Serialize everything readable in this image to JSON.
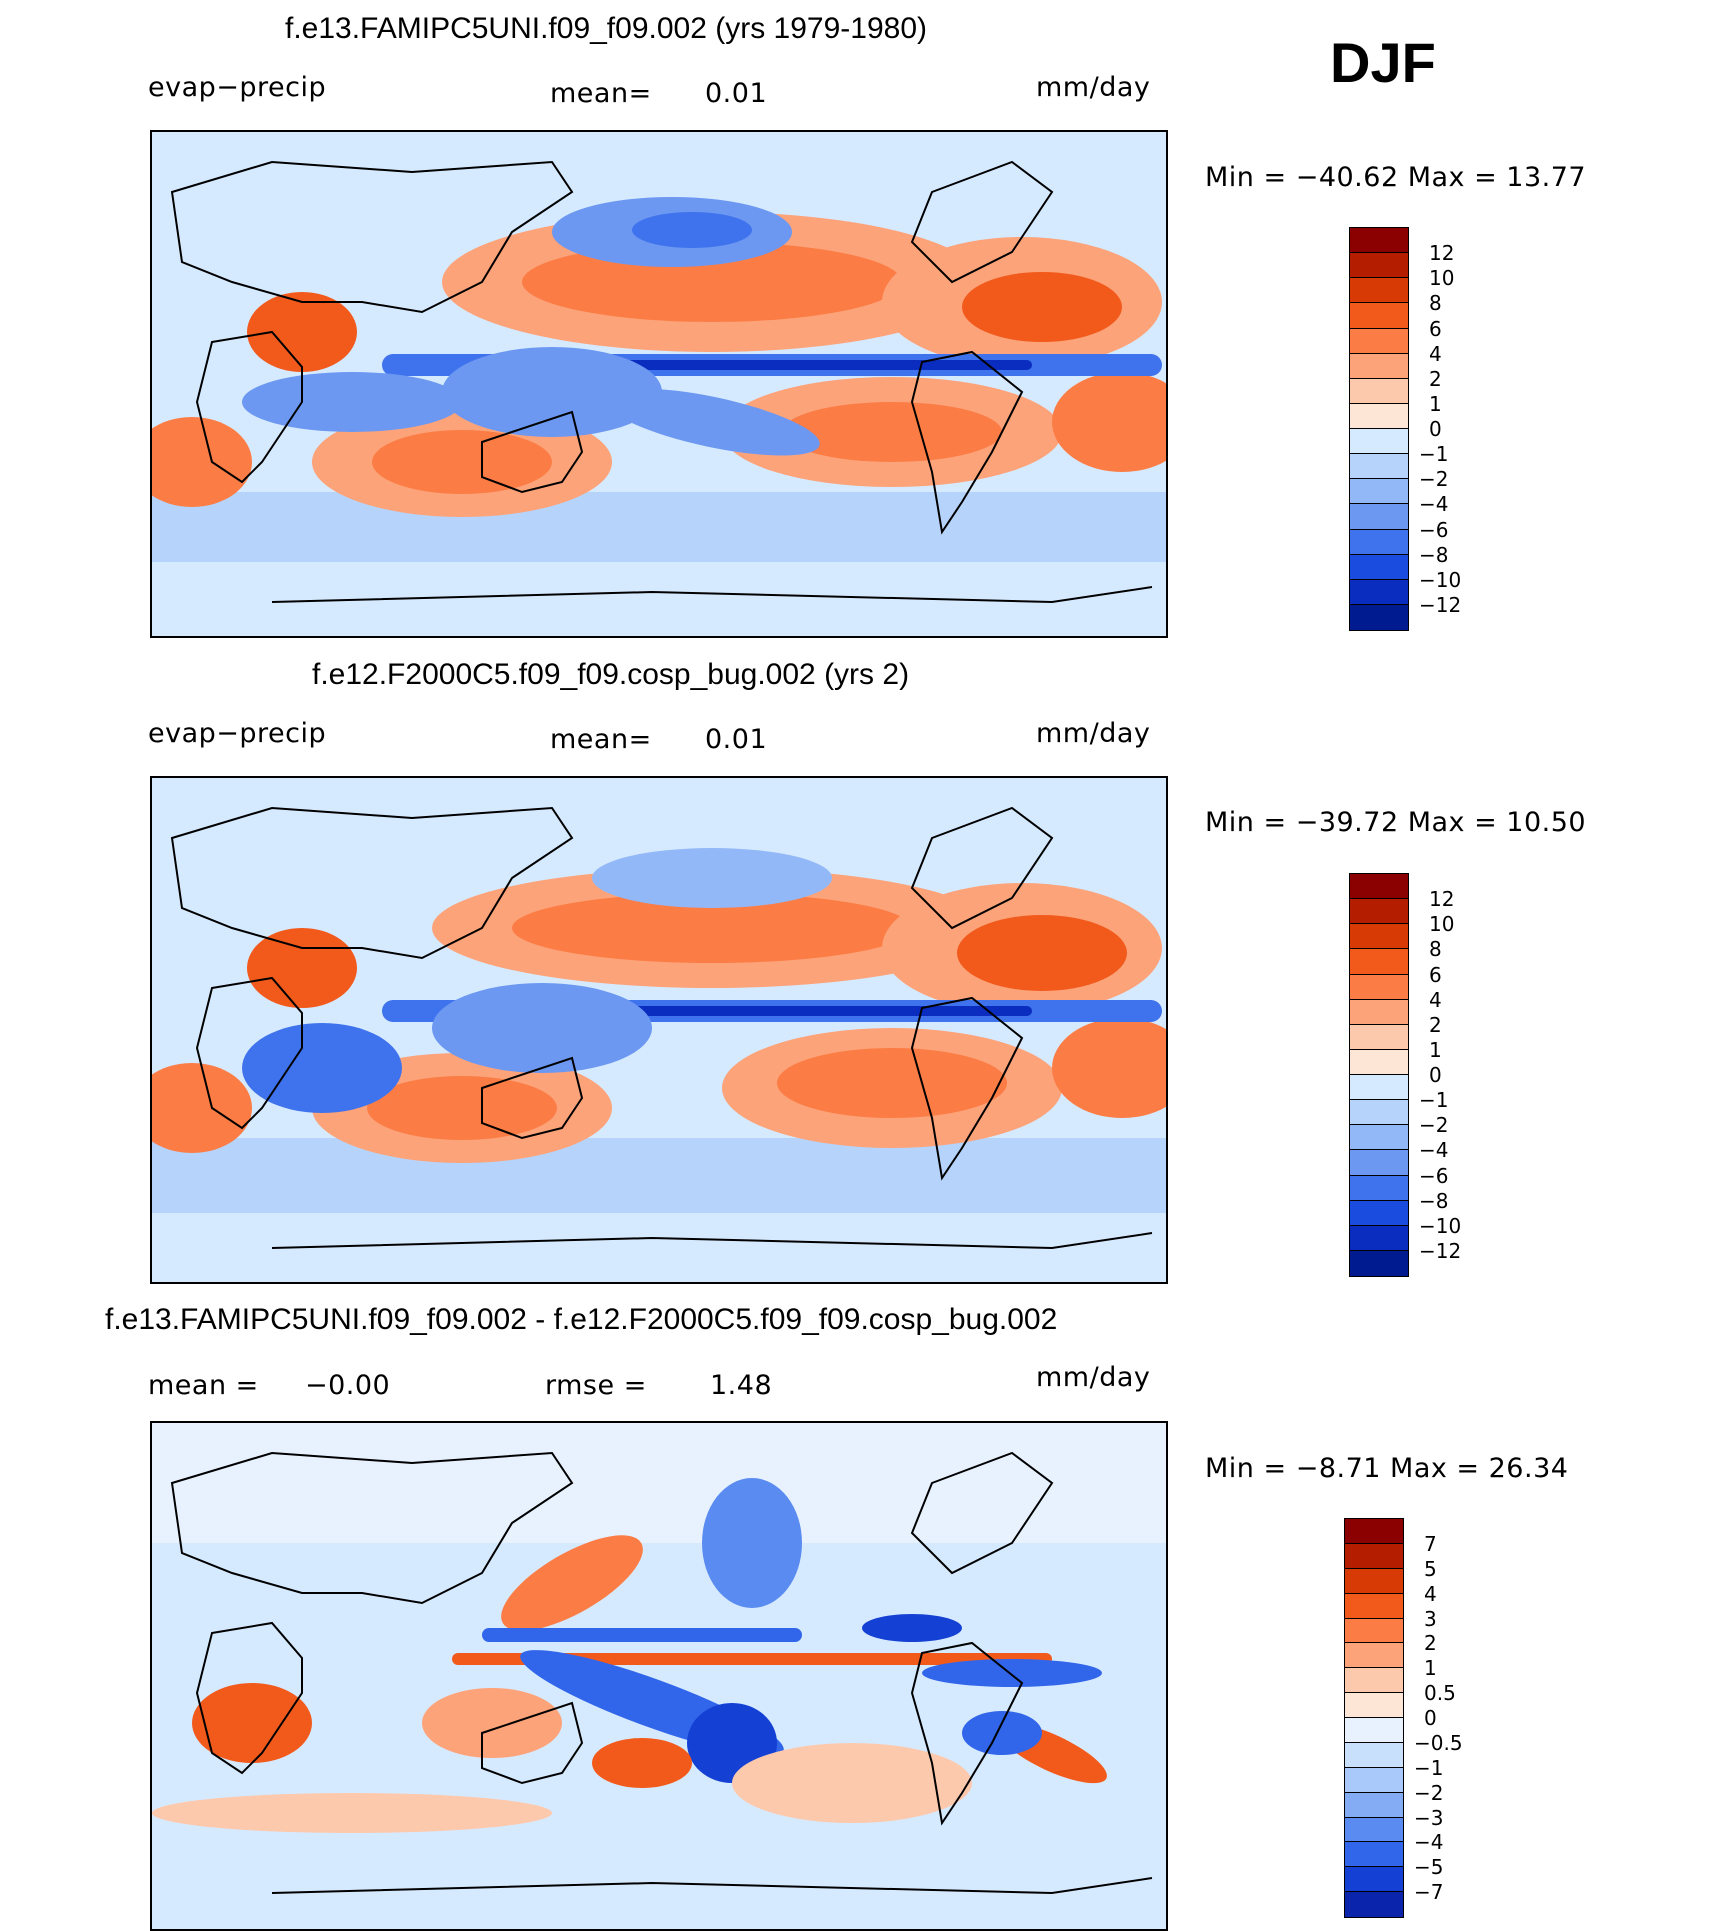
{
  "season": "DJF",
  "panels": [
    {
      "title": "f.e13.FAMIPC5UNI.f09_f09.002 (yrs 1979-1980)",
      "left_label": "evap−precip",
      "center_label": "mean=",
      "center_value": "0.01",
      "right_label": "mm/day",
      "minmax": "Min  =  −40.62  Max  =    13.77",
      "colorbar_labels": [
        "12",
        "10",
        "8",
        "6",
        "4",
        "2",
        "1",
        "0",
        "−1",
        "−2",
        "−4",
        "−6",
        "−8",
        "−10",
        "−12"
      ]
    },
    {
      "title": "f.e12.F2000C5.f09_f09.cosp_bug.002 (yrs 2)",
      "left_label": "evap−precip",
      "center_label": "mean=",
      "center_value": "0.01",
      "right_label": "mm/day",
      "minmax": "Min  =  −39.72  Max  =    10.50",
      "colorbar_labels": [
        "12",
        "10",
        "8",
        "6",
        "4",
        "2",
        "1",
        "0",
        "−1",
        "−2",
        "−4",
        "−6",
        "−8",
        "−10",
        "−12"
      ]
    },
    {
      "title": "f.e13.FAMIPC5UNI.f09_f09.002 - f.e12.F2000C5.f09_f09.cosp_bug.002",
      "left_label": "mean  =",
      "left_value": "−0.00",
      "center_label": "rmse  =",
      "center_value": "1.48",
      "right_label": "mm/day",
      "minmax": "Min  =    −8.71  Max  =    26.34",
      "colorbar_labels": [
        "7",
        "5",
        "4",
        "3",
        "2",
        "1",
        "0.5",
        "0",
        "−0.5",
        "−1",
        "−2",
        "−3",
        "−4",
        "−5",
        "−7"
      ]
    }
  ],
  "colors": {
    "main_scale": [
      "#8b0000",
      "#b51d00",
      "#d83a05",
      "#f25a1c",
      "#fb7d45",
      "#fca37a",
      "#fdc9ad",
      "#fee6d6",
      "#d6eaff",
      "#b6d4fb",
      "#93b8f7",
      "#6c98f2",
      "#3f73ed",
      "#1a4ce0",
      "#0a2dbf",
      "#001a8f"
    ],
    "diff_scale": [
      "#8b0000",
      "#b51d00",
      "#d83a05",
      "#f25a1c",
      "#fb7d45",
      "#fca37a",
      "#fdc9ad",
      "#fee6d6",
      "#e8f2ff",
      "#c9e0fd",
      "#a9c9fa",
      "#83acf5",
      "#5a8bf0",
      "#3166ea",
      "#1440d4",
      "#0a24ab",
      "#001a8f"
    ],
    "land_outline": "#000000"
  }
}
